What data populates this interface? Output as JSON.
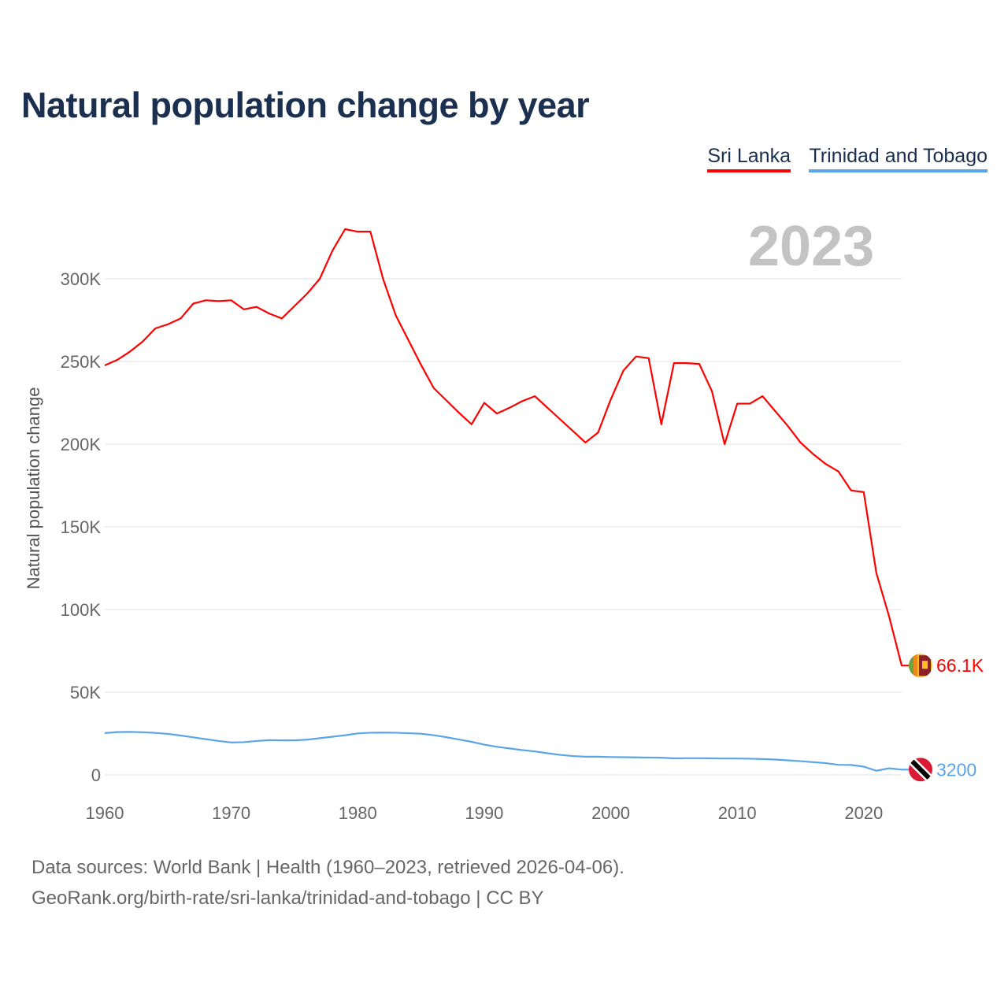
{
  "chart_data": {
    "type": "line",
    "title": "Natural population change by year",
    "xlabel": "",
    "ylabel": "Natural population change",
    "ylim": [
      0,
      330000
    ],
    "xlim": [
      1960,
      2023
    ],
    "grid": true,
    "legend_position": "top-right",
    "current_year_label": "2023",
    "y_ticks": [
      {
        "v": 0,
        "label": "0"
      },
      {
        "v": 50000,
        "label": "50K"
      },
      {
        "v": 100000,
        "label": "100K"
      },
      {
        "v": 150000,
        "label": "150K"
      },
      {
        "v": 200000,
        "label": "200K"
      },
      {
        "v": 250000,
        "label": "250K"
      },
      {
        "v": 300000,
        "label": "300K"
      }
    ],
    "x_ticks": [
      {
        "v": 1960,
        "label": "1960"
      },
      {
        "v": 1970,
        "label": "1970"
      },
      {
        "v": 1980,
        "label": "1980"
      },
      {
        "v": 1990,
        "label": "1990"
      },
      {
        "v": 2000,
        "label": "2000"
      },
      {
        "v": 2010,
        "label": "2010"
      },
      {
        "v": 2020,
        "label": "2020"
      }
    ],
    "x": [
      1960,
      1961,
      1962,
      1963,
      1964,
      1965,
      1966,
      1967,
      1968,
      1969,
      1970,
      1971,
      1972,
      1973,
      1974,
      1975,
      1976,
      1977,
      1978,
      1979,
      1980,
      1981,
      1982,
      1983,
      1984,
      1985,
      1986,
      1987,
      1988,
      1989,
      1990,
      1991,
      1992,
      1993,
      1994,
      1995,
      1996,
      1997,
      1998,
      1999,
      2000,
      2001,
      2002,
      2003,
      2004,
      2005,
      2006,
      2007,
      2008,
      2009,
      2010,
      2011,
      2012,
      2013,
      2014,
      2015,
      2016,
      2017,
      2018,
      2019,
      2020,
      2021,
      2022,
      2023
    ],
    "series": [
      {
        "name": "Sri Lanka",
        "color": "#ff0000",
        "end_label": "66.1K",
        "flag": "sri-lanka",
        "values": [
          247600,
          251000,
          256000,
          262000,
          270000,
          272500,
          276000,
          285000,
          287000,
          286500,
          287000,
          281500,
          283000,
          279000,
          276000,
          283500,
          291000,
          300000,
          317000,
          330000,
          328500,
          328500,
          300000,
          278000,
          263000,
          248000,
          234000,
          226500,
          219000,
          212000,
          225000,
          218500,
          222000,
          226000,
          229000,
          222000,
          215000,
          208000,
          201000,
          207000,
          227000,
          244500,
          253000,
          252000,
          212000,
          249000,
          249000,
          248500,
          232000,
          200000,
          224500,
          224500,
          229000,
          220000,
          211000,
          201000,
          194000,
          188000,
          183500,
          172000,
          171000,
          122000,
          96000,
          66100
        ]
      },
      {
        "name": "Trinidad and Tobago",
        "color": "#5aa5e8",
        "end_label": "3200",
        "flag": "trinidad-and-tobago",
        "values": [
          25300,
          25900,
          26000,
          25800,
          25400,
          24800,
          23800,
          22700,
          21600,
          20500,
          19600,
          19800,
          20500,
          21000,
          20900,
          20900,
          21300,
          22200,
          23100,
          24000,
          25100,
          25500,
          25600,
          25500,
          25200,
          24900,
          24000,
          22800,
          21400,
          20000,
          18300,
          17000,
          16000,
          15000,
          14200,
          13100,
          12100,
          11400,
          11000,
          11000,
          10800,
          10700,
          10600,
          10500,
          10400,
          10000,
          10100,
          10100,
          10000,
          9900,
          9900,
          9800,
          9600,
          9300,
          8800,
          8300,
          7700,
          7100,
          6100,
          6000,
          5000,
          2500,
          4000,
          3200
        ]
      }
    ]
  },
  "footer": {
    "source_line": "Data sources: World Bank | Health (1960–2023, retrieved 2026-04-06).",
    "url_line": "GeoRank.org/birth-rate/sri-lanka/trinidad-and-tobago | CC BY"
  }
}
